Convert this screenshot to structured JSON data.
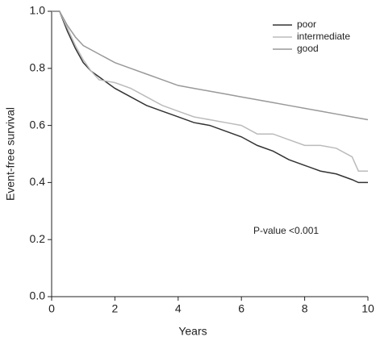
{
  "chart_data": {
    "type": "line",
    "xlabel": "Years",
    "ylabel": "Event-free survival",
    "annotation": "P-value <0.001",
    "xlim": [
      0,
      10
    ],
    "xticks": [
      0,
      2,
      4,
      6,
      8,
      10
    ],
    "ylim": [
      0,
      1
    ],
    "yticks": [
      {
        "value": 0,
        "label": "0.0"
      },
      0.2,
      0.4,
      0.6,
      0.8,
      {
        "value": 1,
        "label": "1.0"
      }
    ],
    "series": [
      {
        "name": "poor",
        "color": "#333333",
        "x": [
          0,
          0.25,
          0.5,
          0.75,
          1,
          1.25,
          1.5,
          2,
          2.5,
          3,
          3.5,
          4,
          4.5,
          5,
          5.5,
          6,
          6.5,
          7,
          7.5,
          8,
          8.5,
          9,
          9.5,
          9.7,
          10
        ],
        "values": [
          1,
          1,
          0.93,
          0.87,
          0.82,
          0.79,
          0.77,
          0.73,
          0.7,
          0.67,
          0.65,
          0.63,
          0.61,
          0.6,
          0.58,
          0.56,
          0.53,
          0.51,
          0.48,
          0.46,
          0.44,
          0.43,
          0.41,
          0.4,
          0.4
        ]
      },
      {
        "name": "intermediate",
        "color": "#bbbbbb",
        "x": [
          0,
          0.25,
          0.5,
          0.75,
          1,
          1.25,
          1.5,
          2,
          2.5,
          3,
          3.5,
          4,
          4.5,
          5,
          5.5,
          6,
          6.5,
          7,
          7.5,
          8,
          8.5,
          9,
          9.5,
          9.7,
          10
        ],
        "values": [
          1,
          1,
          0.94,
          0.88,
          0.83,
          0.79,
          0.76,
          0.75,
          0.73,
          0.7,
          0.67,
          0.65,
          0.63,
          0.62,
          0.61,
          0.6,
          0.57,
          0.57,
          0.55,
          0.53,
          0.53,
          0.52,
          0.49,
          0.44,
          0.44
        ]
      },
      {
        "name": "good",
        "color": "#999999",
        "x": [
          0,
          0.25,
          0.5,
          0.75,
          1,
          1.5,
          2,
          2.5,
          3,
          3.5,
          4,
          4.5,
          5,
          5.5,
          6,
          6.5,
          7,
          7.5,
          8,
          8.5,
          9,
          9.5,
          10
        ],
        "values": [
          1,
          1,
          0.95,
          0.91,
          0.88,
          0.85,
          0.82,
          0.8,
          0.78,
          0.76,
          0.74,
          0.73,
          0.72,
          0.71,
          0.7,
          0.69,
          0.68,
          0.67,
          0.66,
          0.65,
          0.64,
          0.63,
          0.62
        ]
      }
    ]
  }
}
